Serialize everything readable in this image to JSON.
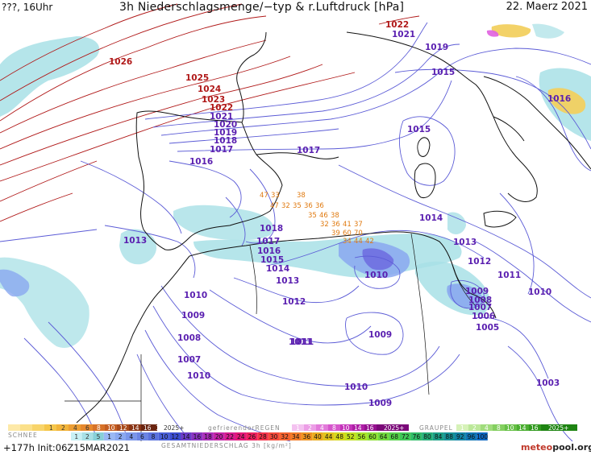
{
  "header": {
    "left": "???, 16Uhr",
    "title": "3h Niederschlagsmenge/−typ & r.Luftdruck [hPa]",
    "date": "22. Maerz 2021"
  },
  "isobars": {
    "red": [
      "1026",
      "1025",
      "1024",
      "1023",
      "1022",
      "1022"
    ],
    "purple": [
      "1021",
      "1020",
      "1019",
      "1018",
      "1017",
      "1016",
      "1021",
      "1019",
      "1015",
      "1015",
      "1016",
      "1017",
      "1018",
      "1017",
      "1016",
      "1015",
      "1014",
      "1013",
      "1014",
      "1013",
      "1013",
      "1012",
      "1011",
      "1010",
      "1009",
      "1008",
      "1007",
      "1006",
      "1005",
      "1012",
      "1011",
      "1010",
      "1009",
      "1008",
      "1007",
      "1010",
      "1009",
      "1010",
      "1011",
      "1010",
      "1009",
      "1003"
    ]
  },
  "rain_labels": [
    "47",
    "33",
    "38",
    "47",
    "32",
    "35",
    "36",
    "36",
    "35",
    "46",
    "38",
    "32",
    "36",
    "41",
    "37",
    "39",
    "60",
    "70",
    "34",
    "44",
    "42"
  ],
  "legend": {
    "schnee_label": "SCHNEE",
    "schnee_scale": [
      "1",
      "2",
      "4",
      "6",
      "8",
      "10",
      "12",
      "14",
      "16",
      "18",
      "2025+"
    ],
    "gefr_label": "gefrierenderREGEN",
    "gefr_scale": [
      "1",
      "2",
      "4",
      "8",
      "10",
      "14",
      "16",
      "2025+"
    ],
    "graupel_label": "GRAUPEL",
    "graupel_scale": [
      "1",
      "2",
      "4",
      "8",
      "10",
      "14",
      "16",
      "2025+"
    ],
    "rain_scale": [
      "1",
      "2",
      "5",
      "1",
      "2",
      "4",
      "6",
      "8",
      "10",
      "12",
      "14",
      "16",
      "18",
      "20",
      "22",
      "24",
      "26",
      "28",
      "30",
      "32",
      "34",
      "36",
      "40",
      "44",
      "48",
      "52",
      "56",
      "60",
      "64",
      "68",
      "72",
      "76",
      "80",
      "84",
      "88",
      "92",
      "96",
      "100"
    ],
    "rain_title": "GESAMTNIEDERSCHLAG  3h  [kg/m²]"
  },
  "footer": {
    "left": "+177h Init:06Z15MAR2021",
    "brand_a": "meteo",
    "brand_b": "pool.org"
  },
  "colors": {
    "isobar": "#5b5bd6",
    "isobar_high": "#b01818",
    "coast": "#111111",
    "rain_light": "#a8e0e6",
    "rain_mid": "#8aa8f0",
    "rain_strong": "#6f6fe0",
    "snow": "#f2b43a",
    "snow_strong": "#e8c020"
  }
}
